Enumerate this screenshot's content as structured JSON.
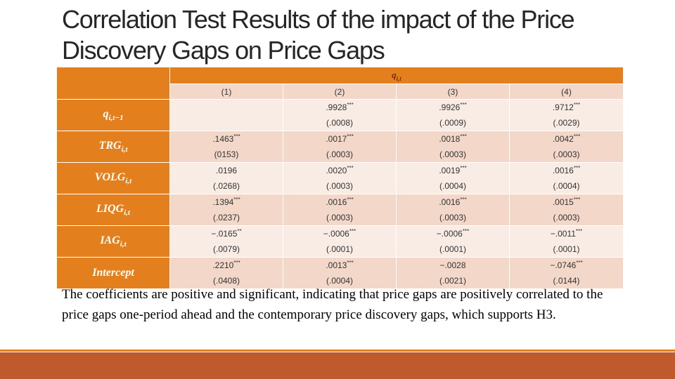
{
  "title": "Correlation Test Results of the impact of the Price Discovery Gaps on Price Gaps",
  "table": {
    "dep_var": "q_{i,t}",
    "dep_main": "q",
    "dep_sub": "i,t",
    "columns": [
      "(1)",
      "(2)",
      "(3)",
      "(4)"
    ],
    "rows": [
      {
        "label": "q",
        "sub": "i,t−1",
        "cells": [
          {
            "coef": "",
            "stars": "",
            "se": ""
          },
          {
            "coef": ".9928",
            "stars": "***",
            "se": "(.0008)"
          },
          {
            "coef": ".9926",
            "stars": "***",
            "se": "(.0009)"
          },
          {
            "coef": ".9712",
            "stars": "***",
            "se": "(.0029)"
          }
        ]
      },
      {
        "label": "TRG",
        "sub": "i,t",
        "cells": [
          {
            "coef": ".1463",
            "stars": "***",
            "se": "(0153)"
          },
          {
            "coef": ".0017",
            "stars": "***",
            "se": "(.0003)"
          },
          {
            "coef": ".0018",
            "stars": "***",
            "se": "(.0003)"
          },
          {
            "coef": ".0042",
            "stars": "***",
            "se": "(.0003)"
          }
        ]
      },
      {
        "label": "VOLG",
        "sub": "i,t",
        "cells": [
          {
            "coef": ".0196",
            "stars": "",
            "se": "(.0268)"
          },
          {
            "coef": ".0020",
            "stars": "***",
            "se": "(.0003)"
          },
          {
            "coef": ".0019",
            "stars": "***",
            "se": "(.0004)"
          },
          {
            "coef": ".0016",
            "stars": "***",
            "se": "(.0004)"
          }
        ]
      },
      {
        "label": "LIQG",
        "sub": "i,t",
        "cells": [
          {
            "coef": ".1394",
            "stars": "***",
            "se": "(.0237)"
          },
          {
            "coef": ".0016",
            "stars": "***",
            "se": "(.0003)"
          },
          {
            "coef": ".0016",
            "stars": "***",
            "se": "(.0003)"
          },
          {
            "coef": ".0015",
            "stars": "***",
            "se": "(.0003)"
          }
        ]
      },
      {
        "label": "IAG",
        "sub": "i,t",
        "cells": [
          {
            "coef": "−.0165",
            "stars": "**",
            "se": "(.0079)"
          },
          {
            "coef": "−.0006",
            "stars": "***",
            "se": "(.0001)"
          },
          {
            "coef": "−.0006",
            "stars": "***",
            "se": "(.0001)"
          },
          {
            "coef": "−.0011",
            "stars": "***",
            "se": "(.0001)"
          }
        ]
      },
      {
        "label": "Intercept",
        "sub": "",
        "cells": [
          {
            "coef": ".2210",
            "stars": "***",
            "se": "(.0408)"
          },
          {
            "coef": ".0013",
            "stars": "***",
            "se": "(.0004)"
          },
          {
            "coef": "−.0028",
            "stars": "",
            "se": "(.0021)"
          },
          {
            "coef": "−.0746",
            "stars": "***",
            "se": "(.0144)"
          }
        ]
      }
    ]
  },
  "body_text": "The coefficients are positive and significant, indicating that price gaps are positively correlated to the price gaps one-period ahead and the contemporary price discovery gaps, which supports H3.",
  "colors": {
    "header": "#e3801d",
    "row_dark": "#f3d7c9",
    "row_light": "#f9ece5",
    "footer": "#bf5a2d"
  }
}
